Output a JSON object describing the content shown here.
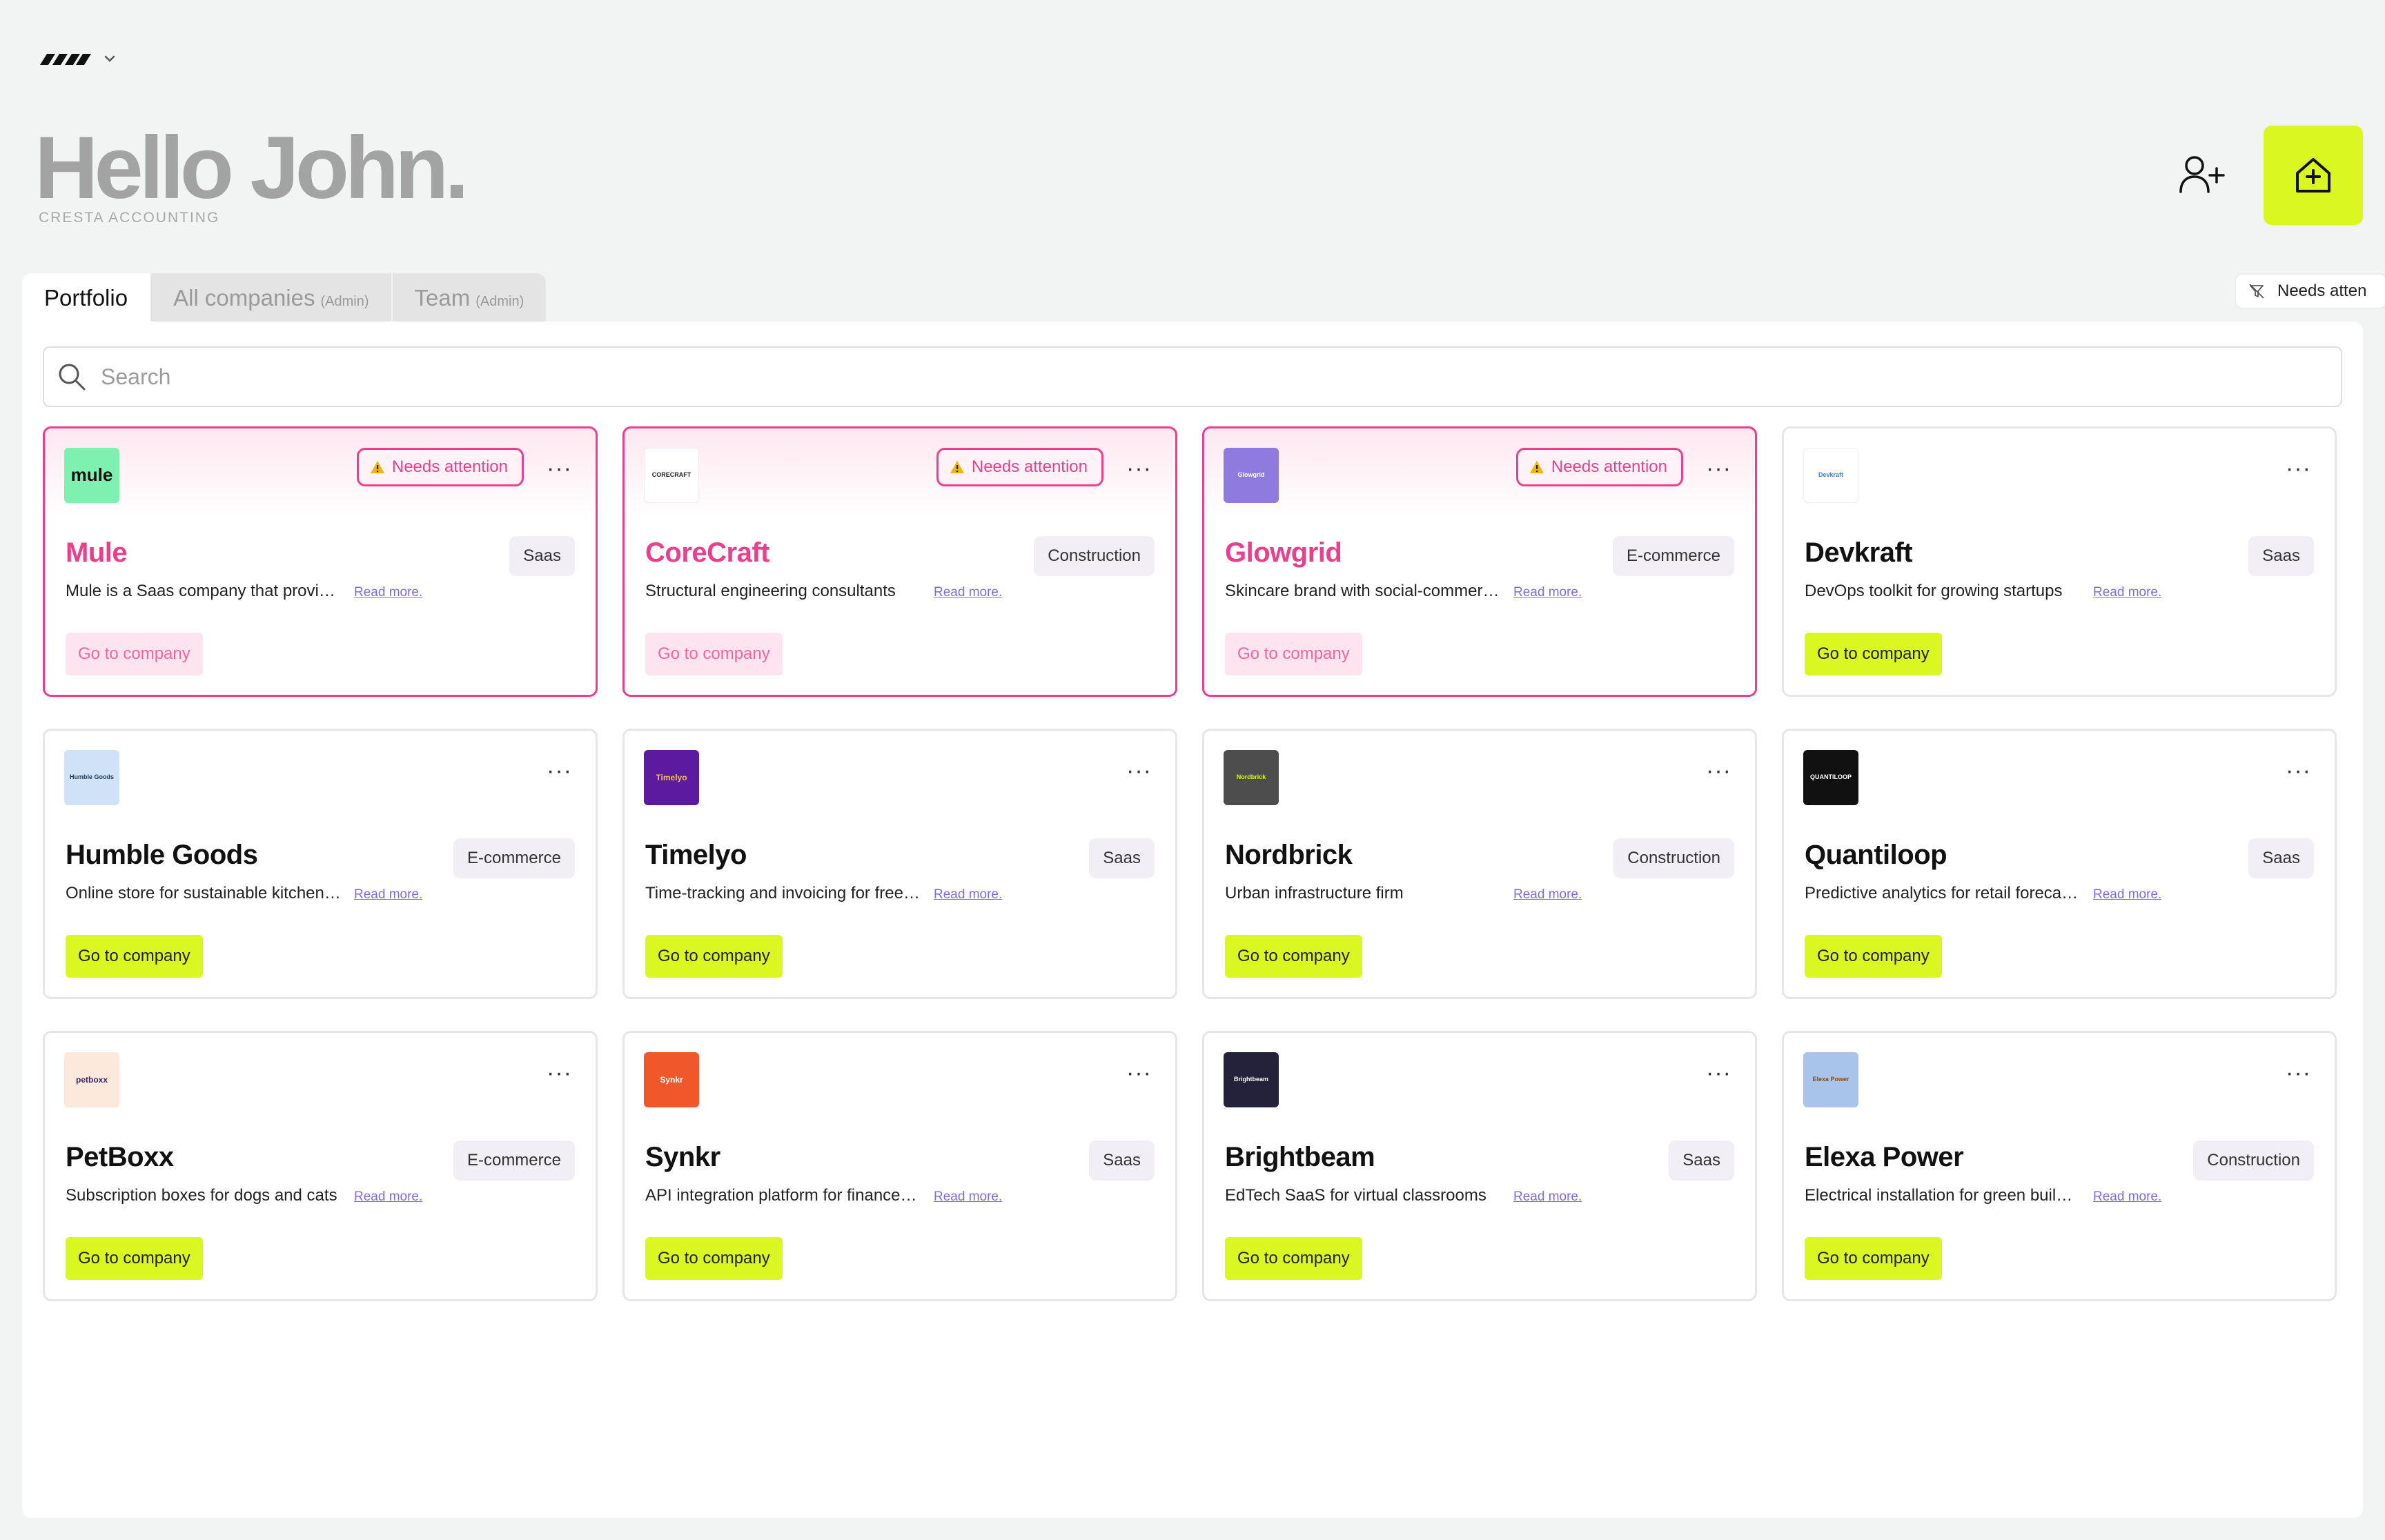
{
  "header": {
    "greeting": "Hello John.",
    "org": "CRESTA ACCOUNTING"
  },
  "tabs": [
    {
      "label": "Portfolio",
      "note": ""
    },
    {
      "label": "All companies",
      "note": "(Admin)"
    },
    {
      "label": "Team",
      "note": "(Admin)"
    }
  ],
  "filter": {
    "label": "Needs atten"
  },
  "search": {
    "placeholder": "Search"
  },
  "common": {
    "needs_attention": "Needs attention",
    "read_more": "Read more.",
    "go_to_company": "Go to company",
    "menu": "···"
  },
  "companies": [
    {
      "name": "Mule",
      "tag": "Saas",
      "desc": "Mule is a Saas company that provides",
      "attention": true,
      "logo_text": "mule",
      "logo_bg": "#7ef0b0",
      "logo_fg": "#111111"
    },
    {
      "name": "CoreCraft",
      "tag": "Construction",
      "desc": "Structural engineering consultants",
      "attention": true,
      "logo_text": "CORECRAFT",
      "logo_bg": "#ffffff",
      "logo_fg": "#222222"
    },
    {
      "name": "Glowgrid",
      "tag": "E-commerce",
      "desc": "Skincare brand with social-commerce focus",
      "attention": true,
      "logo_text": "Glowgrid",
      "logo_bg": "#8f7ae0",
      "logo_fg": "#ffffff"
    },
    {
      "name": "Devkraft",
      "tag": "Saas",
      "desc": "DevOps toolkit for growing startups",
      "attention": false,
      "logo_text": "Devkraft",
      "logo_bg": "#ffffff",
      "logo_fg": "#3c7fd6"
    },
    {
      "name": "Humble Goods",
      "tag": "E-commerce",
      "desc": "Online store for sustainable kitchenware",
      "attention": false,
      "logo_text": "Humble Goods",
      "logo_bg": "#cfe2f7",
      "logo_fg": "#1d3a5c"
    },
    {
      "name": "Timelyo",
      "tag": "Saas",
      "desc": "Time-tracking and invoicing for freelancers",
      "attention": false,
      "logo_text": "Timelyo",
      "logo_bg": "#5b1aa0",
      "logo_fg": "#f6c23e"
    },
    {
      "name": "Nordbrick",
      "tag": "Construction",
      "desc": "Urban infrastructure firm",
      "attention": false,
      "logo_text": "Nordbrick",
      "logo_bg": "#4d4d4d",
      "logo_fg": "#dbf721"
    },
    {
      "name": "Quantiloop",
      "tag": "Saas",
      "desc": "Predictive analytics for retail forecasting",
      "attention": false,
      "logo_text": "QUANTILOOP",
      "logo_bg": "#111111",
      "logo_fg": "#ffffff"
    },
    {
      "name": "PetBoxx",
      "tag": "E-commerce",
      "desc": "Subscription boxes for dogs and cats",
      "attention": false,
      "logo_text": "petboxx",
      "logo_bg": "#fde9dc",
      "logo_fg": "#3a2a6b"
    },
    {
      "name": "Synkr",
      "tag": "Saas",
      "desc": "API integration platform for finance teams",
      "attention": false,
      "logo_text": "Synkr",
      "logo_bg": "#f0582b",
      "logo_fg": "#ffffff"
    },
    {
      "name": "Brightbeam",
      "tag": "Saas",
      "desc": "EdTech SaaS for virtual classrooms",
      "attention": false,
      "logo_text": "Brightbeam",
      "logo_bg": "#23223a",
      "logo_fg": "#ffffff"
    },
    {
      "name": "Elexa Power",
      "tag": "Construction",
      "desc": "Electrical installation for green buildings",
      "attention": false,
      "logo_text": "Elexa Power",
      "logo_bg": "#a9c4ea",
      "logo_fg": "#8a4a14"
    }
  ],
  "colors": {
    "accent": "#dbf721",
    "attention": "#ec3e8b",
    "read_more": "#7a6ee6"
  }
}
